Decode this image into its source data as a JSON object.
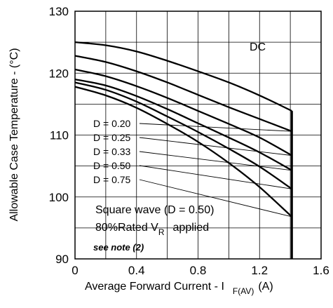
{
  "chart_data": {
    "type": "line",
    "title": "",
    "xlabel": "Average Forward Current - I",
    "xlabel_sub": "F(AV)",
    "xlabel_unit": "(A)",
    "ylabel": "Allowable Case Temperature - (°C)",
    "xlim": [
      0,
      1.6
    ],
    "ylim": [
      90,
      130
    ],
    "x_ticks": [
      "0",
      "0.4",
      "0.8",
      "1.2",
      "1.6"
    ],
    "y_ticks": [
      "90",
      "100",
      "110",
      "120",
      "130"
    ],
    "grid": true,
    "series": [
      {
        "name": "DC",
        "x": [
          0,
          0.2,
          0.4,
          0.6,
          0.8,
          1.0,
          1.2,
          1.41
        ],
        "y": [
          125.0,
          124.5,
          123.5,
          122.0,
          120.3,
          118.5,
          116.4,
          113.9
        ]
      },
      {
        "name": "D = 0.20",
        "x": [
          0,
          0.2,
          0.4,
          0.6,
          0.8,
          1.0,
          1.2,
          1.41
        ],
        "y": [
          122.8,
          121.8,
          120.3,
          118.5,
          116.5,
          114.5,
          112.6,
          110.6
        ]
      },
      {
        "name": "D = 0.25",
        "x": [
          0,
          0.2,
          0.4,
          0.6,
          0.8,
          1.0,
          1.2,
          1.41
        ],
        "y": [
          120.6,
          119.5,
          117.9,
          116.0,
          113.9,
          111.8,
          109.6,
          106.7
        ]
      },
      {
        "name": "D = 0.33",
        "x": [
          0,
          0.2,
          0.4,
          0.6,
          0.8,
          1.0,
          1.2,
          1.41
        ],
        "y": [
          119.0,
          118.0,
          116.3,
          114.2,
          111.9,
          109.6,
          107.2,
          104.3
        ]
      },
      {
        "name": "D = 0.50",
        "x": [
          0,
          0.2,
          0.4,
          0.6,
          0.8,
          1.0,
          1.2,
          1.41
        ],
        "y": [
          118.5,
          117.3,
          115.4,
          113.0,
          110.5,
          107.8,
          104.9,
          101.3
        ]
      },
      {
        "name": "D = 0.75",
        "x": [
          0,
          0.2,
          0.4,
          0.6,
          0.8,
          1.0,
          1.2,
          1.41
        ],
        "y": [
          117.8,
          116.4,
          114.4,
          111.8,
          108.9,
          105.5,
          101.6,
          96.8
        ]
      }
    ],
    "annotations": {
      "dc": "DC",
      "square_wave": "Square wave (D = 0.50)",
      "rated_prefix": "80%Rated V",
      "rated_sub": "R",
      "rated_suffix": "applied",
      "note": "see note (2)"
    },
    "colors": {
      "line": "#000000",
      "grid": "#000000",
      "background": "#ffffff"
    }
  }
}
